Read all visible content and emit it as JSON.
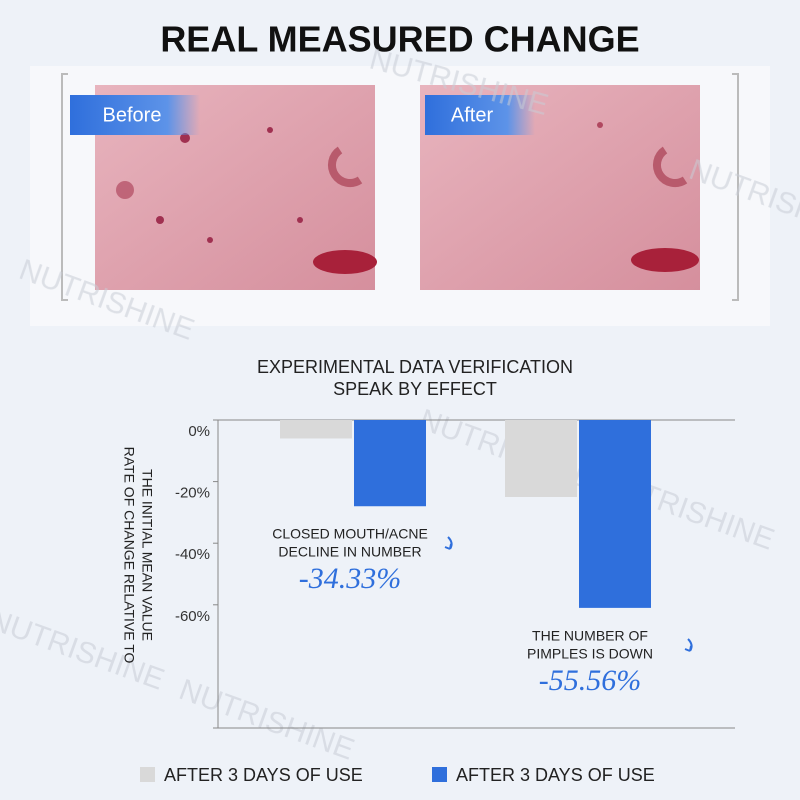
{
  "header": {
    "title": "REAL MEASURED CHANGE"
  },
  "photos": {
    "before": "Before",
    "after": "After"
  },
  "watermark": "NUTRISHINE",
  "chart_data": {
    "type": "bar",
    "title": "EXPERIMENTAL DATA VERIFICATION",
    "subtitle": "SPEAK BY EFFECT",
    "y_label": [
      "RATE OF CHANGE RELATIVE TO",
      "THE INITIAL MEAN VALUE"
    ],
    "categories": [
      null,
      null
    ],
    "series": [
      {
        "name": "AFTER 3 DAYS OF USE",
        "color": "#d9d9d9",
        "values": [
          -6,
          -25
        ]
      },
      {
        "name": "AFTER 3 DAYS OF USE",
        "color": "#2f6fdc",
        "values": [
          -28,
          -61
        ]
      }
    ],
    "ylim": [
      -100,
      0
    ],
    "yticks": [
      {
        "value": 0,
        "label": "0%"
      },
      {
        "value": -20,
        "label": "-20%"
      },
      {
        "value": -40,
        "label": "-40%"
      },
      {
        "value": -60,
        "label": "-60%"
      }
    ],
    "annotations": [
      {
        "lines": [
          "CLOSED MOUTH/ACNE",
          "DECLINE IN NUMBER"
        ],
        "value": "-34.33%"
      },
      {
        "lines": [
          "THE NUMBER OF",
          "PIMPLES IS DOWN"
        ],
        "value": "-55.56%"
      }
    ]
  }
}
